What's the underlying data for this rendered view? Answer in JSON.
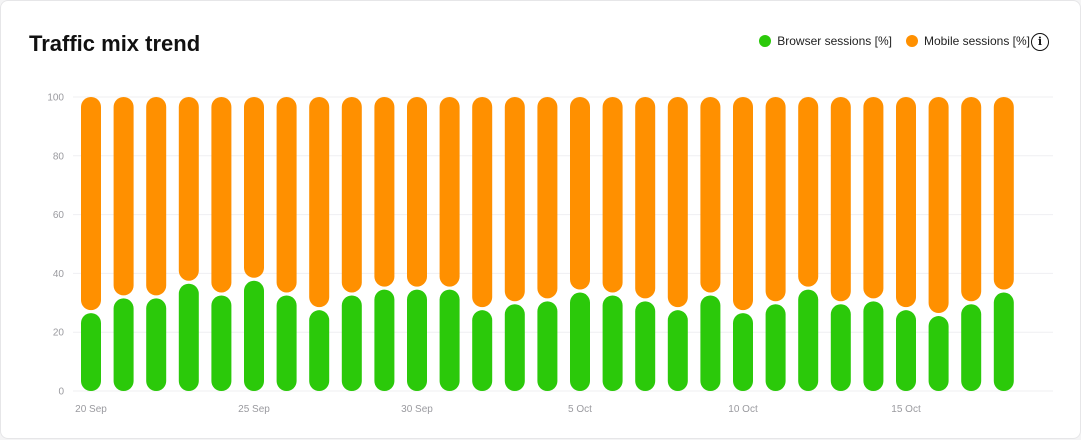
{
  "card": {
    "title": "Traffic mix trend",
    "info_icon": "info-icon"
  },
  "chart_data": {
    "type": "bar",
    "stacked": true,
    "title": "Traffic mix trend",
    "xlabel": "",
    "ylabel": "",
    "ylim": [
      0,
      100
    ],
    "yticks": [
      0,
      20,
      40,
      60,
      80,
      100
    ],
    "grid": true,
    "legend_position": "top-right",
    "x_tick_labels": [
      {
        "index": 0,
        "label": "20 Sep"
      },
      {
        "index": 5,
        "label": "25 Sep"
      },
      {
        "index": 10,
        "label": "30 Sep"
      },
      {
        "index": 15,
        "label": "5 Oct"
      },
      {
        "index": 20,
        "label": "10 Oct"
      },
      {
        "index": 25,
        "label": "15 Oct"
      }
    ],
    "categories": [
      "20 Sep",
      "21 Sep",
      "22 Sep",
      "23 Sep",
      "24 Sep",
      "25 Sep",
      "26 Sep",
      "27 Sep",
      "28 Sep",
      "29 Sep",
      "30 Sep",
      "1 Oct",
      "2 Oct",
      "3 Oct",
      "4 Oct",
      "5 Oct",
      "6 Oct",
      "7 Oct",
      "8 Oct",
      "9 Oct",
      "10 Oct",
      "11 Oct",
      "12 Oct",
      "13 Oct",
      "14 Oct",
      "15 Oct",
      "16 Oct",
      "17 Oct",
      "18 Oct"
    ],
    "series": [
      {
        "name": "Browser sessions [%]",
        "color": "#2bc90a",
        "values": [
          27,
          32,
          32,
          37,
          33,
          38,
          33,
          28,
          33,
          35,
          35,
          35,
          28,
          30,
          31,
          34,
          33,
          31,
          28,
          33,
          27,
          30,
          35,
          30,
          31,
          28,
          26,
          30,
          34
        ]
      },
      {
        "name": "Mobile sessions [%]",
        "color": "#ff9000",
        "values": [
          73,
          68,
          68,
          63,
          67,
          62,
          67,
          72,
          67,
          65,
          65,
          65,
          72,
          70,
          69,
          66,
          67,
          69,
          72,
          67,
          73,
          70,
          65,
          70,
          69,
          72,
          74,
          70,
          66
        ]
      }
    ]
  }
}
